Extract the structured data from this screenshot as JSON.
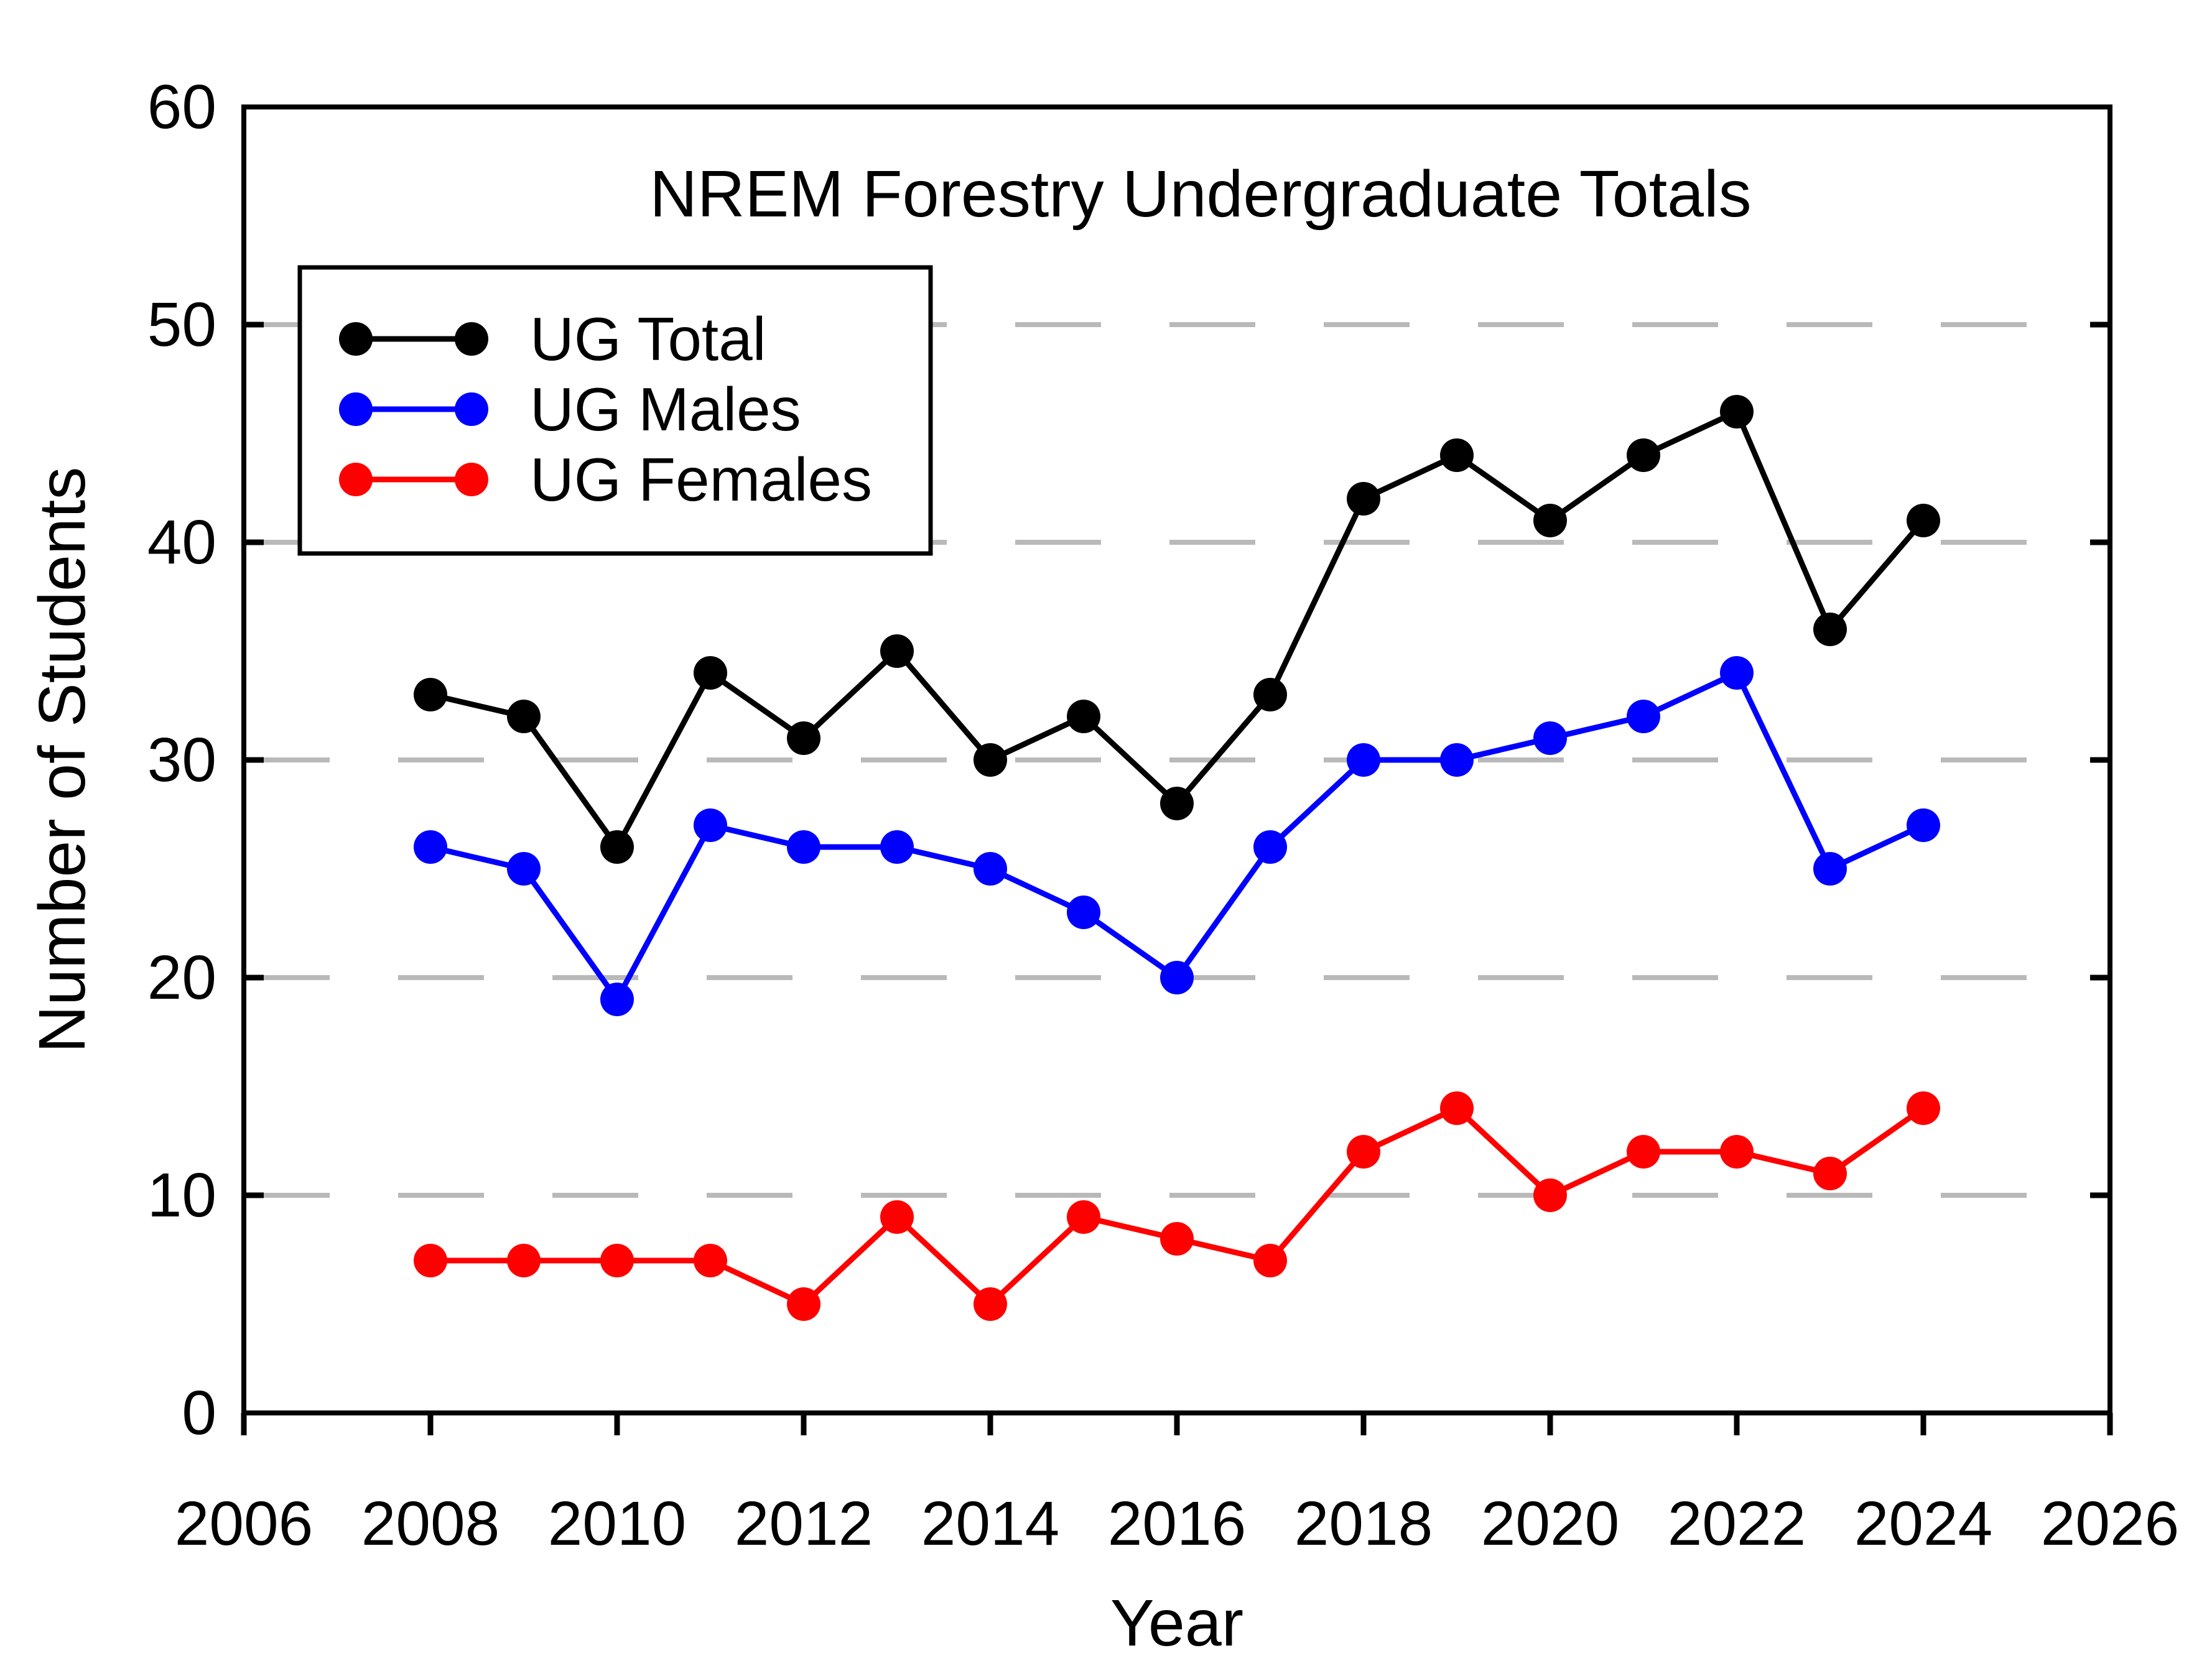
{
  "title": "NREM Forestry Undergraduate Totals",
  "colors": {
    "background": "#ffffff",
    "frame": "#000000",
    "gridline": "#b9b9b9",
    "ug_total": "#000000",
    "ug_males": "#0000ff",
    "ug_females": "#ff0000"
  },
  "chart_data": {
    "type": "line",
    "title": "NREM Forestry Undergraduate Totals",
    "xlabel": "Year",
    "ylabel": "Number of Students",
    "xlim": [
      2006,
      2026
    ],
    "ylim": [
      0,
      60
    ],
    "x_ticks": [
      2006,
      2008,
      2010,
      2012,
      2014,
      2016,
      2018,
      2020,
      2022,
      2024,
      2026
    ],
    "y_ticks": [
      0,
      10,
      20,
      30,
      40,
      50,
      60
    ],
    "grid": "horizontal dashed gray at 10,20,30,40,50",
    "legend_position": "top-left inside plot, boxed",
    "marker": "filled circle",
    "x": [
      2008,
      2009,
      2010,
      2011,
      2012,
      2013,
      2014,
      2015,
      2016,
      2017,
      2018,
      2019,
      2020,
      2021,
      2022,
      2023,
      2024
    ],
    "series": [
      {
        "name": "UG Total",
        "color": "#000000",
        "values": [
          33,
          32,
          26,
          34,
          31,
          35,
          30,
          32,
          28,
          33,
          42,
          44,
          41,
          44,
          46,
          36,
          41
        ]
      },
      {
        "name": "UG Males",
        "color": "#0000ff",
        "values": [
          26,
          25,
          19,
          27,
          26,
          26,
          25,
          23,
          20,
          26,
          30,
          30,
          31,
          32,
          34,
          25,
          27
        ]
      },
      {
        "name": "UG Females",
        "color": "#ff0000",
        "values": [
          7,
          7,
          7,
          7,
          5,
          9,
          5,
          9,
          8,
          7,
          12,
          14,
          10,
          12,
          12,
          11,
          14
        ]
      }
    ]
  }
}
